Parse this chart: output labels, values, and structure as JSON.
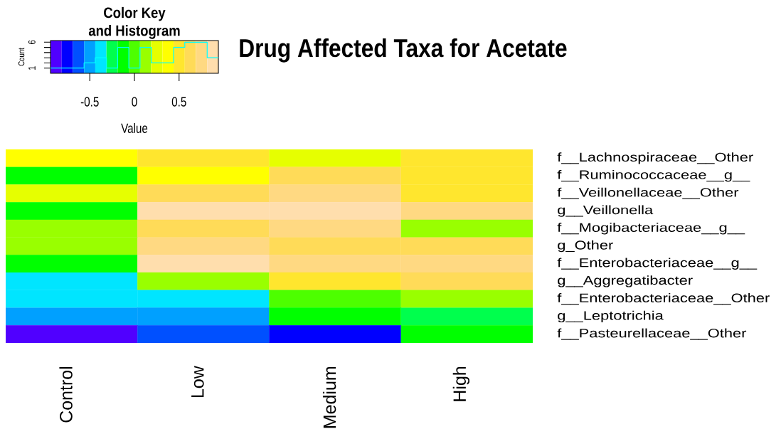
{
  "chart_data": [
    {
      "type": "step",
      "title": "Color Key and Histogram",
      "ylabel": "Count",
      "color": "#00ffff",
      "categories": [
        null,
        null,
        null,
        null,
        null,
        null,
        null,
        null,
        null,
        null,
        null,
        null,
        null,
        null,
        null,
        null
      ],
      "values": [
        1,
        1,
        1,
        2,
        3,
        1,
        5,
        1,
        5,
        2,
        2,
        5,
        6,
        6,
        3,
        3
      ],
      "ylim": [
        0,
        6.32
      ],
      "yticks": [
        1,
        {
          "value": 2,
          "label": null
        },
        {
          "value": 3,
          "label": null
        },
        {
          "value": 4,
          "label": null
        },
        {
          "value": 5,
          "label": null
        },
        6
      ],
      "tick_labels": "y"
    },
    {
      "type": "heatmap",
      "title": "Drug Affected Taxa for Acetate",
      "categories": [
        "Control",
        "Low",
        "Medium",
        "High"
      ],
      "y_categories": [
        "f__Lachnospiraceae__Other",
        "f__Ruminococcaceae__g__",
        "f__Veillonellaceae__Other",
        "g__Veillonella",
        "f__Mogibacteriaceae__g__",
        "g_Other",
        "f__Enterobacteriaceae__g__",
        "g__Aggregatibacter",
        "f__Enterobacteriaceae__Other",
        "g__Leptotrichia",
        "f__Pasteurellaceae__Other"
      ],
      "cells": [
        [
          0.38,
          0.5,
          0.25,
          0.5
        ],
        [
          -0.12,
          0.38,
          0.62,
          0.5
        ],
        [
          0.25,
          0.62,
          0.75,
          0.5
        ],
        [
          -0.12,
          0.88,
          0.88,
          0.75
        ],
        [
          0.12,
          0.62,
          0.75,
          0.12
        ],
        [
          0.12,
          0.75,
          0.62,
          0.62
        ],
        [
          -0.12,
          0.88,
          0.75,
          0.75
        ],
        [
          -0.38,
          0.12,
          0.5,
          0.62
        ],
        [
          -0.38,
          -0.38,
          0,
          0.12
        ],
        [
          -0.5,
          -0.5,
          -0.12,
          -0.25
        ],
        [
          -0.88,
          -0.62,
          -0.75,
          -0.12
        ]
      ],
      "clim": [
        -0.94,
        0.94
      ],
      "cticks": [
        -0.5,
        0,
        0.5
      ],
      "clabel": "Value"
    }
  ]
}
